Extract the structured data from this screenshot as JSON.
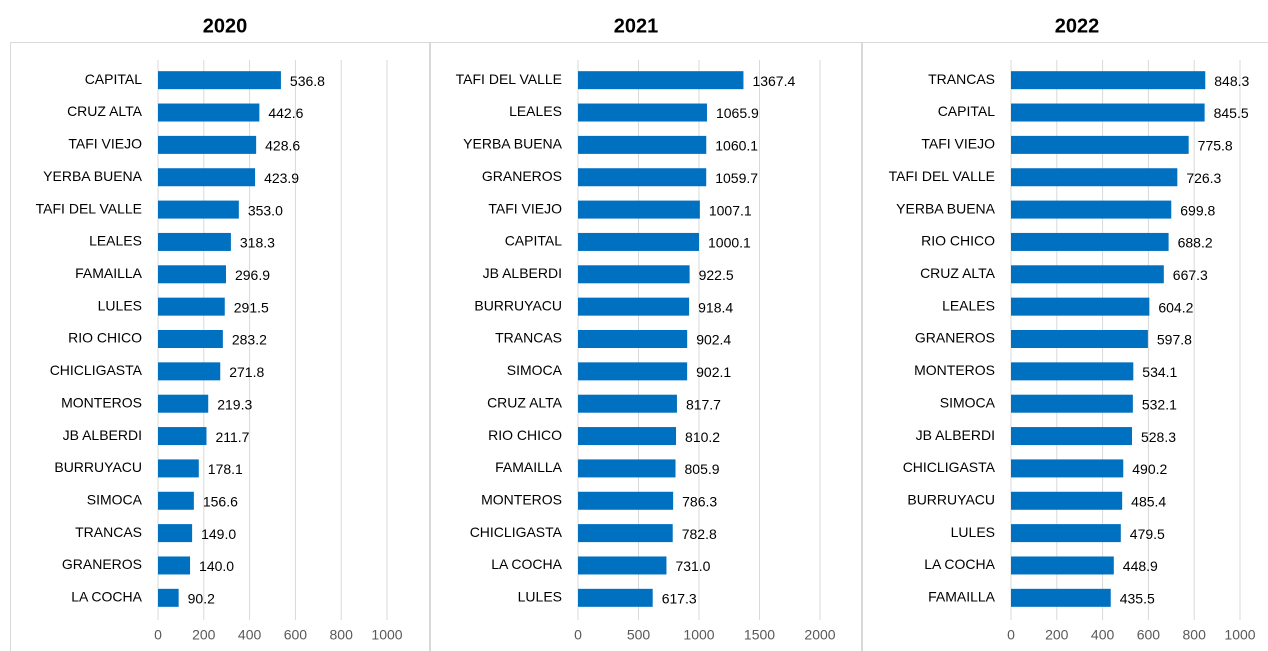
{
  "chart_data": [
    {
      "type": "bar",
      "orientation": "horizontal",
      "title": "2020",
      "categories": [
        "CAPITAL",
        "CRUZ ALTA",
        "TAFI VIEJO",
        "YERBA BUENA",
        "TAFI DEL VALLE",
        "LEALES",
        "FAMAILLA",
        "LULES",
        "RIO CHICO",
        "CHICLIGASTA",
        "MONTEROS",
        "JB ALBERDI",
        "BURRUYACU",
        "SIMOCA",
        "TRANCAS",
        "GRANEROS",
        "LA COCHA"
      ],
      "values": [
        536.8,
        442.6,
        428.6,
        423.9,
        353.0,
        318.3,
        296.9,
        291.5,
        283.2,
        271.8,
        219.3,
        211.7,
        178.1,
        156.6,
        149.0,
        140.0,
        90.2
      ],
      "value_labels": [
        "536.8",
        "442.6",
        "428.6",
        "423.9",
        "353.0",
        "318.3",
        "296.9",
        "291.5",
        "283.2",
        "271.8",
        "219.3",
        "211.7",
        "178.1",
        "156.6",
        "149.0",
        "140.0",
        "90.2"
      ],
      "color": "#0070c0",
      "xlim": [
        0,
        1000
      ],
      "xticks": [
        0,
        200,
        400,
        600,
        800,
        1000
      ],
      "grid": true
    },
    {
      "type": "bar",
      "orientation": "horizontal",
      "title": "2021",
      "categories": [
        "TAFI DEL VALLE",
        "LEALES",
        "YERBA BUENA",
        "GRANEROS",
        "TAFI VIEJO",
        "CAPITAL",
        "JB ALBERDI",
        "BURRUYACU",
        "TRANCAS",
        "SIMOCA",
        "CRUZ ALTA",
        "RIO CHICO",
        "FAMAILLA",
        "MONTEROS",
        "CHICLIGASTA",
        "LA COCHA",
        "LULES"
      ],
      "values": [
        1367.4,
        1065.9,
        1060.1,
        1059.7,
        1007.1,
        1000.1,
        922.5,
        918.4,
        902.4,
        902.1,
        817.7,
        810.2,
        805.9,
        786.3,
        782.8,
        731.0,
        617.3
      ],
      "value_labels": [
        "1367.4",
        "1065.9",
        "1060.1",
        "1059.7",
        "1007.1",
        "1000.1",
        "922.5",
        "918.4",
        "902.4",
        "902.1",
        "817.7",
        "810.2",
        "805.9",
        "786.3",
        "782.8",
        "731.0",
        "617.3"
      ],
      "color": "#0070c0",
      "xlim": [
        0,
        2000
      ],
      "xticks": [
        0,
        500,
        1000,
        1500,
        2000
      ],
      "grid": true
    },
    {
      "type": "bar",
      "orientation": "horizontal",
      "title": "2022",
      "categories": [
        "TRANCAS",
        "CAPITAL",
        "TAFI VIEJO",
        "TAFI DEL VALLE",
        "YERBA BUENA",
        "RIO CHICO",
        "CRUZ ALTA",
        "LEALES",
        "GRANEROS",
        "MONTEROS",
        "SIMOCA",
        "JB ALBERDI",
        "CHICLIGASTA",
        "BURRUYACU",
        "LULES",
        "LA COCHA",
        "FAMAILLA"
      ],
      "values": [
        848.3,
        845.5,
        775.8,
        726.3,
        699.8,
        688.2,
        667.3,
        604.2,
        597.8,
        534.1,
        532.1,
        528.3,
        490.2,
        485.4,
        479.5,
        448.9,
        435.5
      ],
      "value_labels": [
        "848.3",
        "845.5",
        "775.8",
        "726.3",
        "699.8",
        "688.2",
        "667.3",
        "604.2",
        "597.8",
        "534.1",
        "532.1",
        "528.3",
        "490.2",
        "485.4",
        "479.5",
        "448.9",
        "435.5"
      ],
      "color": "#0070c0",
      "xlim": [
        0,
        1000
      ],
      "xticks": [
        0,
        200,
        400,
        600,
        800,
        1000
      ],
      "grid": true
    }
  ]
}
